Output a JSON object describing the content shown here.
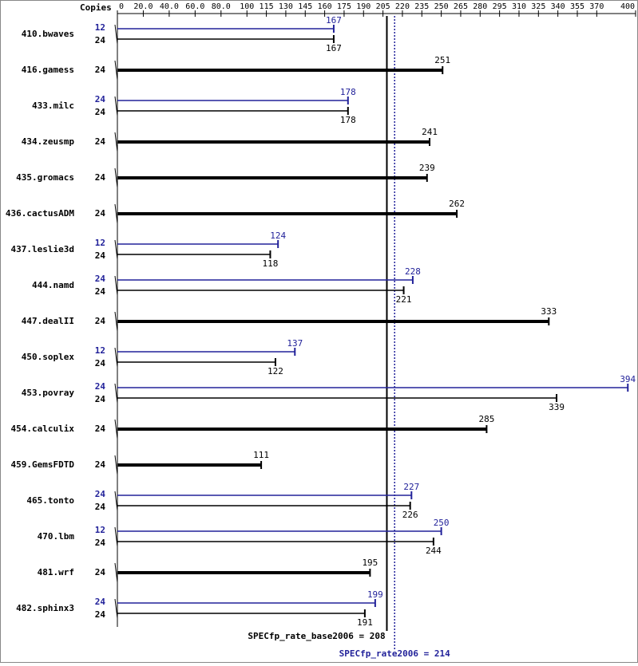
{
  "chart_data": {
    "type": "spec_bar",
    "header": "Copies",
    "categories": [
      "410.bwaves",
      "416.gamess",
      "433.milc",
      "434.zeusmp",
      "435.gromacs",
      "436.cactusADM",
      "437.leslie3d",
      "444.namd",
      "447.dealII",
      "450.soplex",
      "453.povray",
      "454.calculix",
      "459.GemsFDTD",
      "465.tonto",
      "470.lbm",
      "481.wrf",
      "482.sphinx3"
    ],
    "base": {
      "color": "#000000",
      "copies": [
        24,
        24,
        24,
        24,
        24,
        24,
        24,
        24,
        24,
        24,
        24,
        24,
        24,
        24,
        24,
        24,
        24
      ],
      "values": [
        167,
        251,
        178,
        241,
        239,
        262,
        118,
        221,
        333,
        122,
        339,
        285,
        111,
        226,
        244,
        195,
        191
      ]
    },
    "peak": {
      "color": "#22229a",
      "copies": [
        12,
        null,
        24,
        null,
        null,
        null,
        12,
        24,
        null,
        12,
        24,
        null,
        null,
        24,
        12,
        null,
        24
      ],
      "values": [
        167,
        null,
        178,
        null,
        null,
        null,
        124,
        228,
        null,
        137,
        394,
        null,
        null,
        227,
        250,
        null,
        199
      ]
    },
    "xlim": [
      0,
      400
    ],
    "xticks": [
      0,
      {
        "value": 20,
        "label": "20.0"
      },
      {
        "value": 40,
        "label": "40.0"
      },
      {
        "value": 60,
        "label": "60.0"
      },
      {
        "value": 80,
        "label": "80.0"
      },
      100,
      115,
      130,
      145,
      160,
      175,
      190,
      205,
      220,
      235,
      250,
      265,
      280,
      295,
      310,
      325,
      340,
      355,
      370,
      400
    ],
    "reference_lines": [
      {
        "label": "SPECfp_rate_base2006 = 208",
        "value": 208,
        "color": "#000000",
        "style": "solid"
      },
      {
        "label": "SPECfp_rate2006 = 214",
        "value": 214,
        "color": "#22229a",
        "style": "dotted"
      }
    ]
  }
}
